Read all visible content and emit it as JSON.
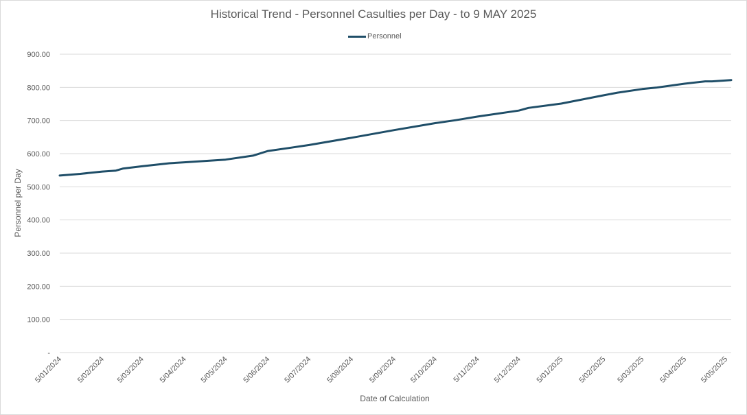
{
  "chart_data": {
    "type": "line",
    "title": "Historical Trend - Personnel Casulties per Day - to 9 MAY 2025",
    "xlabel": "Date of Calculation",
    "ylabel": "Personnel per Day",
    "ylim": [
      0,
      900
    ],
    "yticks": [
      {
        "value": 0,
        "label": "-"
      },
      {
        "value": 100,
        "label": "100.00"
      },
      {
        "value": 200,
        "label": "200.00"
      },
      {
        "value": 300,
        "label": "300.00"
      },
      {
        "value": 400,
        "label": "400.00"
      },
      {
        "value": 500,
        "label": "500.00"
      },
      {
        "value": 600,
        "label": "600.00"
      },
      {
        "value": 700,
        "label": "700.00"
      },
      {
        "value": 800,
        "label": "800.00"
      },
      {
        "value": 900,
        "label": "900.00"
      }
    ],
    "xtick_labels": [
      "5/01/2024",
      "5/02/2024",
      "5/03/2024",
      "5/04/2024",
      "5/05/2024",
      "5/06/2024",
      "5/07/2024",
      "5/08/2024",
      "5/09/2024",
      "5/10/2024",
      "5/11/2024",
      "5/12/2024",
      "5/01/2025",
      "5/02/2025",
      "5/03/2025",
      "5/04/2025",
      "5/05/2025"
    ],
    "grid": true,
    "legend_position": "top",
    "series": [
      {
        "name": "Personnel",
        "color": "#1f4e68",
        "points": [
          {
            "x": "5/01/2024",
            "y": 534
          },
          {
            "x": "20/01/2024",
            "y": 539
          },
          {
            "x": "5/02/2024",
            "y": 546
          },
          {
            "x": "15/02/2024",
            "y": 549
          },
          {
            "x": "20/02/2024",
            "y": 555
          },
          {
            "x": "5/03/2024",
            "y": 562
          },
          {
            "x": "25/03/2024",
            "y": 571
          },
          {
            "x": "5/04/2024",
            "y": 574
          },
          {
            "x": "5/05/2024",
            "y": 582
          },
          {
            "x": "25/05/2024",
            "y": 594
          },
          {
            "x": "1/06/2024",
            "y": 603
          },
          {
            "x": "5/06/2024",
            "y": 608
          },
          {
            "x": "20/06/2024",
            "y": 617
          },
          {
            "x": "5/07/2024",
            "y": 626
          },
          {
            "x": "5/08/2024",
            "y": 648
          },
          {
            "x": "5/09/2024",
            "y": 671
          },
          {
            "x": "5/10/2024",
            "y": 692
          },
          {
            "x": "20/10/2024",
            "y": 701
          },
          {
            "x": "5/11/2024",
            "y": 712
          },
          {
            "x": "5/12/2024",
            "y": 730
          },
          {
            "x": "12/12/2024",
            "y": 738
          },
          {
            "x": "5/01/2025",
            "y": 751
          },
          {
            "x": "5/02/2025",
            "y": 776
          },
          {
            "x": "15/02/2025",
            "y": 784
          },
          {
            "x": "5/03/2025",
            "y": 795
          },
          {
            "x": "15/03/2025",
            "y": 799
          },
          {
            "x": "5/04/2025",
            "y": 811
          },
          {
            "x": "20/04/2025",
            "y": 818
          },
          {
            "x": "25/04/2025",
            "y": 818
          },
          {
            "x": "9/05/2025",
            "y": 822
          }
        ]
      }
    ]
  }
}
